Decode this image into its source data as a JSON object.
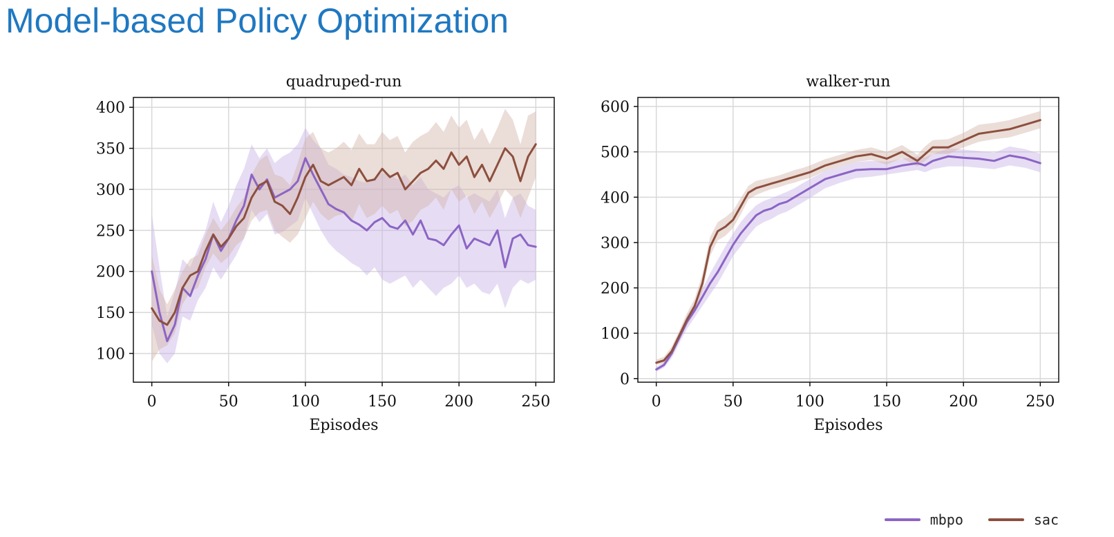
{
  "slide": {
    "title": "Model-based Policy Optimization"
  },
  "legend": {
    "items": [
      {
        "label": "mbpo",
        "color": "#8c64c4"
      },
      {
        "label": "sac",
        "color": "#8c4f3e"
      }
    ]
  },
  "colors": {
    "mbpo": "#8c64c4",
    "mbpo_band": "#c8b4e6",
    "sac": "#8c4f3e",
    "sac_band": "#d2b4a8",
    "grid": "#d8d8d8",
    "axis": "#111111"
  },
  "chart_data": [
    {
      "type": "line",
      "title": "quadruped-run",
      "xlabel": "Episodes",
      "ylabel": "",
      "xlim": [
        -12,
        262
      ],
      "ylim": [
        65,
        412
      ],
      "xticks": [
        0,
        50,
        100,
        150,
        200,
        250
      ],
      "yticks": [
        100,
        150,
        200,
        250,
        300,
        350,
        400
      ],
      "grid": true,
      "series": [
        {
          "name": "mbpo",
          "x": [
            0,
            5,
            10,
            15,
            20,
            25,
            30,
            35,
            40,
            45,
            50,
            55,
            60,
            65,
            70,
            75,
            80,
            85,
            90,
            95,
            100,
            105,
            110,
            115,
            120,
            125,
            130,
            135,
            140,
            145,
            150,
            155,
            160,
            165,
            170,
            175,
            180,
            185,
            190,
            195,
            200,
            205,
            210,
            215,
            220,
            225,
            230,
            235,
            240,
            245,
            250
          ],
          "values": [
            200,
            150,
            115,
            135,
            180,
            170,
            195,
            215,
            245,
            225,
            240,
            262,
            280,
            318,
            300,
            312,
            290,
            295,
            300,
            310,
            338,
            318,
            300,
            282,
            276,
            272,
            262,
            257,
            250,
            260,
            265,
            255,
            252,
            262,
            245,
            262,
            240,
            238,
            232,
            245,
            256,
            228,
            240,
            236,
            232,
            250,
            205,
            240,
            245,
            232,
            230
          ],
          "lower": [
            135,
            100,
            88,
            100,
            145,
            140,
            165,
            180,
            205,
            190,
            205,
            220,
            240,
            275,
            260,
            270,
            245,
            248,
            255,
            262,
            290,
            270,
            250,
            235,
            225,
            218,
            210,
            205,
            195,
            205,
            190,
            185,
            190,
            195,
            180,
            190,
            180,
            170,
            180,
            185,
            195,
            180,
            185,
            175,
            172,
            185,
            155,
            180,
            190,
            185,
            190
          ],
          "upper": [
            270,
            205,
            145,
            175,
            215,
            205,
            228,
            250,
            285,
            260,
            280,
            305,
            325,
            355,
            338,
            350,
            332,
            340,
            345,
            355,
            375,
            360,
            350,
            330,
            325,
            318,
            315,
            310,
            308,
            315,
            320,
            318,
            312,
            318,
            305,
            315,
            300,
            295,
            290,
            300,
            305,
            290,
            295,
            290,
            285,
            300,
            265,
            290,
            295,
            280,
            275
          ]
        },
        {
          "name": "sac",
          "x": [
            0,
            5,
            10,
            15,
            20,
            25,
            30,
            35,
            40,
            45,
            50,
            55,
            60,
            65,
            70,
            75,
            80,
            85,
            90,
            95,
            100,
            105,
            110,
            115,
            120,
            125,
            130,
            135,
            140,
            145,
            150,
            155,
            160,
            165,
            170,
            175,
            180,
            185,
            190,
            195,
            200,
            205,
            210,
            215,
            220,
            225,
            230,
            235,
            240,
            245,
            250
          ],
          "values": [
            155,
            140,
            135,
            150,
            180,
            195,
            200,
            225,
            245,
            230,
            240,
            255,
            265,
            290,
            305,
            310,
            285,
            280,
            270,
            290,
            315,
            330,
            310,
            305,
            310,
            315,
            305,
            325,
            310,
            312,
            325,
            315,
            320,
            300,
            310,
            320,
            325,
            335,
            325,
            345,
            330,
            340,
            315,
            330,
            310,
            330,
            350,
            340,
            310,
            340,
            355
          ],
          "lower": [
            90,
            105,
            110,
            125,
            160,
            175,
            180,
            205,
            222,
            210,
            218,
            232,
            240,
            262,
            272,
            275,
            250,
            242,
            235,
            245,
            265,
            285,
            270,
            262,
            268,
            270,
            260,
            282,
            265,
            270,
            280,
            270,
            275,
            255,
            262,
            275,
            280,
            290,
            275,
            300,
            285,
            292,
            270,
            285,
            265,
            282,
            300,
            290,
            265,
            290,
            315
          ],
          "upper": [
            220,
            178,
            160,
            178,
            200,
            215,
            220,
            245,
            265,
            250,
            262,
            278,
            290,
            318,
            335,
            342,
            318,
            315,
            305,
            332,
            362,
            370,
            350,
            345,
            350,
            358,
            348,
            368,
            355,
            355,
            370,
            360,
            365,
            345,
            358,
            365,
            370,
            382,
            370,
            390,
            375,
            385,
            360,
            375,
            355,
            375,
            398,
            385,
            355,
            390,
            395
          ]
        }
      ]
    },
    {
      "type": "line",
      "title": "walker-run",
      "xlabel": "Episodes",
      "ylabel": "",
      "xlim": [
        -12,
        262
      ],
      "ylim": [
        -8,
        620
      ],
      "xticks": [
        0,
        50,
        100,
        150,
        200,
        250
      ],
      "yticks": [
        0,
        100,
        200,
        300,
        400,
        500,
        600
      ],
      "grid": true,
      "series": [
        {
          "name": "mbpo",
          "x": [
            0,
            5,
            10,
            15,
            20,
            25,
            30,
            35,
            40,
            45,
            50,
            55,
            60,
            65,
            70,
            75,
            80,
            85,
            90,
            95,
            100,
            110,
            120,
            130,
            140,
            150,
            160,
            170,
            175,
            180,
            190,
            200,
            210,
            220,
            230,
            240,
            250
          ],
          "values": [
            20,
            30,
            55,
            90,
            125,
            150,
            180,
            210,
            235,
            265,
            295,
            320,
            340,
            360,
            370,
            375,
            385,
            390,
            400,
            410,
            420,
            440,
            450,
            460,
            462,
            462,
            470,
            475,
            470,
            480,
            490,
            487,
            485,
            480,
            492,
            486,
            475
          ],
          "lower": [
            15,
            24,
            45,
            78,
            110,
            135,
            160,
            185,
            210,
            240,
            270,
            292,
            315,
            335,
            345,
            352,
            362,
            368,
            378,
            388,
            398,
            420,
            432,
            442,
            445,
            450,
            455,
            460,
            455,
            462,
            468,
            468,
            465,
            462,
            470,
            465,
            455
          ],
          "upper": [
            26,
            36,
            65,
            100,
            140,
            165,
            198,
            232,
            262,
            292,
            320,
            345,
            365,
            382,
            392,
            398,
            405,
            412,
            420,
            430,
            440,
            458,
            468,
            478,
            480,
            478,
            485,
            490,
            488,
            495,
            508,
            505,
            502,
            498,
            512,
            506,
            496
          ]
        },
        {
          "name": "sac",
          "x": [
            0,
            5,
            10,
            15,
            20,
            25,
            30,
            35,
            40,
            45,
            50,
            55,
            60,
            65,
            70,
            75,
            80,
            85,
            90,
            95,
            100,
            110,
            120,
            130,
            140,
            150,
            160,
            170,
            175,
            180,
            190,
            200,
            210,
            220,
            230,
            240,
            250
          ],
          "values": [
            35,
            40,
            60,
            95,
            130,
            160,
            210,
            290,
            325,
            335,
            350,
            380,
            410,
            420,
            425,
            430,
            435,
            440,
            445,
            450,
            455,
            470,
            480,
            490,
            495,
            485,
            500,
            480,
            495,
            510,
            510,
            525,
            540,
            545,
            550,
            560,
            570
          ],
          "lower": [
            30,
            34,
            52,
            85,
            118,
            145,
            192,
            270,
            305,
            315,
            332,
            362,
            395,
            405,
            412,
            418,
            422,
            428,
            432,
            438,
            442,
            458,
            468,
            478,
            482,
            472,
            486,
            468,
            480,
            495,
            495,
            510,
            522,
            528,
            532,
            542,
            552
          ],
          "upper": [
            42,
            48,
            70,
            106,
            144,
            176,
            230,
            312,
            345,
            356,
            370,
            398,
            425,
            436,
            440,
            444,
            448,
            454,
            460,
            464,
            470,
            484,
            494,
            504,
            510,
            500,
            515,
            494,
            512,
            526,
            528,
            542,
            560,
            564,
            570,
            580,
            590
          ]
        }
      ]
    }
  ]
}
